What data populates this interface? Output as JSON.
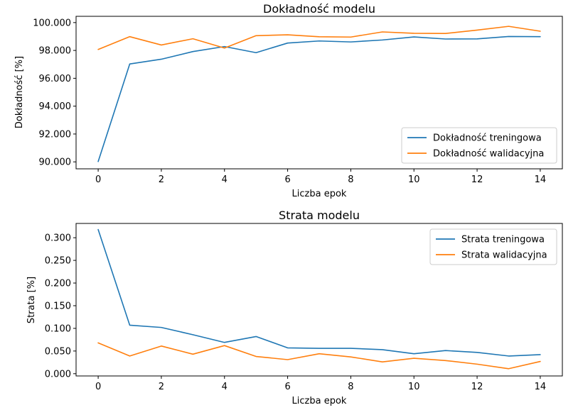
{
  "chart_data": [
    {
      "type": "line",
      "title": "Dokładność modelu",
      "xlabel": "Liczba epok",
      "ylabel": "Dokładność [%]",
      "xlim": [
        -0.7,
        14.7
      ],
      "ylim": [
        89.5,
        100.45
      ],
      "xticks": [
        0,
        2,
        4,
        6,
        8,
        10,
        12,
        14
      ],
      "yticks": [
        90,
        92,
        94,
        96,
        98,
        100
      ],
      "ytick_decimals": 3,
      "legend_position": "lower-right",
      "x": [
        0,
        1,
        2,
        3,
        4,
        5,
        6,
        7,
        8,
        9,
        10,
        11,
        12,
        13,
        14
      ],
      "series": [
        {
          "name": "Dokładność treningowa",
          "color": "#1f77b4",
          "values": [
            90.02,
            97.03,
            97.37,
            97.92,
            98.28,
            97.84,
            98.53,
            98.68,
            98.61,
            98.75,
            98.97,
            98.82,
            98.83,
            99.0,
            98.99
          ]
        },
        {
          "name": "Dokładność walidacyjna",
          "color": "#ff7f0e",
          "values": [
            98.07,
            98.99,
            98.39,
            98.84,
            98.17,
            99.06,
            99.12,
            98.98,
            98.96,
            99.33,
            99.23,
            99.22,
            99.46,
            99.73,
            99.38
          ]
        }
      ]
    },
    {
      "type": "line",
      "title": "Strata modelu",
      "xlabel": "Liczba epok",
      "ylabel": "Strata [%]",
      "xlim": [
        -0.7,
        14.7
      ],
      "ylim": [
        -0.005,
        0.3315
      ],
      "xticks": [
        0,
        2,
        4,
        6,
        8,
        10,
        12,
        14
      ],
      "yticks": [
        0.0,
        0.05,
        0.1,
        0.15,
        0.2,
        0.25,
        0.3
      ],
      "ytick_decimals": 3,
      "legend_position": "upper-right",
      "x": [
        0,
        1,
        2,
        3,
        4,
        5,
        6,
        7,
        8,
        9,
        10,
        11,
        12,
        13,
        14
      ],
      "series": [
        {
          "name": "Strata treningowa",
          "color": "#1f77b4",
          "values": [
            0.318,
            0.107,
            0.102,
            0.086,
            0.069,
            0.082,
            0.057,
            0.056,
            0.056,
            0.053,
            0.044,
            0.051,
            0.047,
            0.039,
            0.042
          ]
        },
        {
          "name": "Strata walidacyjna",
          "color": "#ff7f0e",
          "values": [
            0.068,
            0.039,
            0.061,
            0.043,
            0.062,
            0.038,
            0.031,
            0.044,
            0.037,
            0.026,
            0.034,
            0.029,
            0.021,
            0.011,
            0.027
          ]
        }
      ]
    }
  ]
}
